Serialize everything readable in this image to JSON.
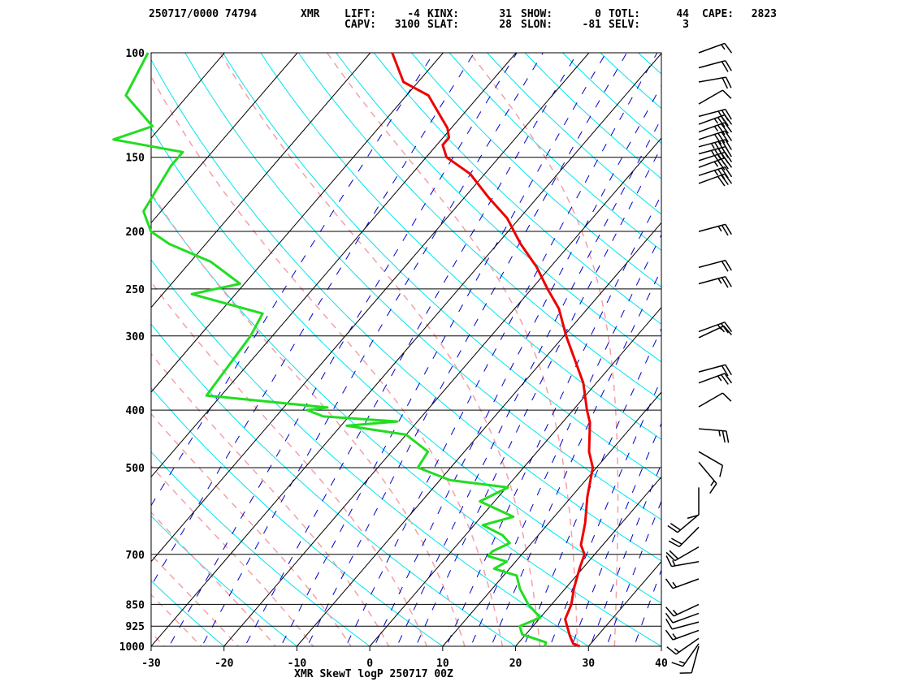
{
  "header": {
    "datetime_station": "250717/0000 74794",
    "station": "XMR",
    "indices": [
      {
        "label": "LIFT:",
        "value": "-4"
      },
      {
        "label": "KINX:",
        "value": "31"
      },
      {
        "label": "SHOW:",
        "value": "0"
      },
      {
        "label": "TOTL:",
        "value": "44"
      },
      {
        "label": "CAPE:",
        "value": "2823"
      },
      {
        "label": "CAPV:",
        "value": "3100"
      },
      {
        "label": "SLAT:",
        "value": "28"
      },
      {
        "label": "SLON:",
        "value": "-81"
      },
      {
        "label": "SELV:",
        "value": "3"
      }
    ]
  },
  "chart_data": {
    "type": "line",
    "title": "XMR SkewT logP 250717 00Z",
    "xlabel": "",
    "ylabel": "",
    "xlim": [
      -30,
      40
    ],
    "ylim": [
      1000,
      100
    ],
    "log_y": true,
    "x_ticks": [
      "-30",
      "-20",
      "-10",
      "0",
      "10",
      "20",
      "30",
      "40"
    ],
    "y_ticks": [
      "100",
      "150",
      "200",
      "250",
      "300",
      "400",
      "500",
      "700",
      "850",
      "925",
      "1000"
    ],
    "colors": {
      "temperature": "#ee0000",
      "dewpoint": "#22dd22",
      "dry_adiabat": "#00e5ee",
      "moist_adiabat": "#f4a0a8",
      "mixing_ratio": "#0000cc",
      "isotherm": "#000000"
    },
    "series": [
      {
        "role": "temperature",
        "points": [
          [
            1000,
            28.8
          ],
          [
            990,
            27.6
          ],
          [
            960,
            26.2
          ],
          [
            925,
            24.7
          ],
          [
            900,
            23.6
          ],
          [
            850,
            22.7
          ],
          [
            800,
            21.2
          ],
          [
            740,
            19.6
          ],
          [
            700,
            18.6
          ],
          [
            675,
            17.0
          ],
          [
            620,
            15.0
          ],
          [
            560,
            12.2
          ],
          [
            500,
            9.5
          ],
          [
            470,
            7.1
          ],
          [
            420,
            3.8
          ],
          [
            400,
            1.9
          ],
          [
            360,
            -1.8
          ],
          [
            320,
            -6.9
          ],
          [
            300,
            -9.7
          ],
          [
            270,
            -13.9
          ],
          [
            250,
            -17.8
          ],
          [
            230,
            -21.8
          ],
          [
            210,
            -26.8
          ],
          [
            190,
            -31.7
          ],
          [
            175,
            -36.8
          ],
          [
            160,
            -42.0
          ],
          [
            150,
            -47.2
          ],
          [
            143,
            -49.2
          ],
          [
            139,
            -49.2
          ],
          [
            134,
            -50.5
          ],
          [
            118,
            -57.0
          ],
          [
            112,
            -62.0
          ],
          [
            100,
            -67.0
          ]
        ]
      },
      {
        "role": "dewpoint",
        "points": [
          [
            1000,
            24.0
          ],
          [
            985,
            23.7
          ],
          [
            955,
            19.5
          ],
          [
            925,
            18.2
          ],
          [
            895,
            20.0
          ],
          [
            850,
            16.8
          ],
          [
            800,
            13.8
          ],
          [
            760,
            11.8
          ],
          [
            740,
            7.9
          ],
          [
            720,
            8.8
          ],
          [
            705,
            5.6
          ],
          [
            692,
            5.6
          ],
          [
            670,
            7.0
          ],
          [
            650,
            5.1
          ],
          [
            625,
            1.2
          ],
          [
            605,
            4.4
          ],
          [
            570,
            -2.0
          ],
          [
            540,
            0.2
          ],
          [
            525,
            -8.6
          ],
          [
            500,
            -14.5
          ],
          [
            470,
            -15.0
          ],
          [
            440,
            -20.0
          ],
          [
            425,
            -29.2
          ],
          [
            418,
            -22.8
          ],
          [
            410,
            -33.5
          ],
          [
            400,
            -36.5
          ],
          [
            396,
            -34.0
          ],
          [
            378,
            -52.0
          ],
          [
            300,
            -53.0
          ],
          [
            275,
            -54.0
          ],
          [
            255,
            -66.0
          ],
          [
            245,
            -60.6
          ],
          [
            225,
            -67.2
          ],
          [
            210,
            -75.0
          ],
          [
            200,
            -79.0
          ],
          [
            185,
            -82.4
          ],
          [
            155,
            -84.0
          ],
          [
            147,
            -84.0
          ],
          [
            140,
            -95.0
          ],
          [
            133,
            -91.2
          ],
          [
            118,
            -98.5
          ],
          [
            100,
            -100.5
          ]
        ]
      }
    ],
    "wind_barbs": [
      {
        "p": 100,
        "speed_kt": 15,
        "dir_deg": 70
      },
      {
        "p": 106,
        "speed_kt": 20,
        "dir_deg": 75
      },
      {
        "p": 112,
        "speed_kt": 20,
        "dir_deg": 80
      },
      {
        "p": 122,
        "speed_kt": 10,
        "dir_deg": 60
      },
      {
        "p": 128,
        "speed_kt": 30,
        "dir_deg": 75
      },
      {
        "p": 132,
        "speed_kt": 35,
        "dir_deg": 70
      },
      {
        "p": 136,
        "speed_kt": 35,
        "dir_deg": 70
      },
      {
        "p": 140,
        "speed_kt": 40,
        "dir_deg": 72
      },
      {
        "p": 144,
        "speed_kt": 45,
        "dir_deg": 75
      },
      {
        "p": 148,
        "speed_kt": 45,
        "dir_deg": 75
      },
      {
        "p": 152,
        "speed_kt": 40,
        "dir_deg": 72
      },
      {
        "p": 156,
        "speed_kt": 35,
        "dir_deg": 70
      },
      {
        "p": 161,
        "speed_kt": 35,
        "dir_deg": 72
      },
      {
        "p": 166,
        "speed_kt": 30,
        "dir_deg": 70
      },
      {
        "p": 200,
        "speed_kt": 25,
        "dir_deg": 75
      },
      {
        "p": 230,
        "speed_kt": 20,
        "dir_deg": 75
      },
      {
        "p": 245,
        "speed_kt": 25,
        "dir_deg": 75
      },
      {
        "p": 295,
        "speed_kt": 25,
        "dir_deg": 70
      },
      {
        "p": 302,
        "speed_kt": 15,
        "dir_deg": 65
      },
      {
        "p": 345,
        "speed_kt": 20,
        "dir_deg": 75
      },
      {
        "p": 360,
        "speed_kt": 25,
        "dir_deg": 70
      },
      {
        "p": 395,
        "speed_kt": 10,
        "dir_deg": 60
      },
      {
        "p": 430,
        "speed_kt": 25,
        "dir_deg": 95
      },
      {
        "p": 470,
        "speed_kt": 10,
        "dir_deg": 120
      },
      {
        "p": 490,
        "speed_kt": 15,
        "dir_deg": 140
      },
      {
        "p": 540,
        "speed_kt": 10,
        "dir_deg": 180
      },
      {
        "p": 600,
        "speed_kt": 20,
        "dir_deg": 230
      },
      {
        "p": 630,
        "speed_kt": 20,
        "dir_deg": 225
      },
      {
        "p": 680,
        "speed_kt": 20,
        "dir_deg": 240
      },
      {
        "p": 720,
        "speed_kt": 15,
        "dir_deg": 260
      },
      {
        "p": 770,
        "speed_kt": 15,
        "dir_deg": 250
      },
      {
        "p": 850,
        "speed_kt": 15,
        "dir_deg": 245
      },
      {
        "p": 880,
        "speed_kt": 10,
        "dir_deg": 250
      },
      {
        "p": 910,
        "speed_kt": 10,
        "dir_deg": 255
      },
      {
        "p": 940,
        "speed_kt": 15,
        "dir_deg": 250
      },
      {
        "p": 970,
        "speed_kt": 15,
        "dir_deg": 235
      },
      {
        "p": 990,
        "speed_kt": 15,
        "dir_deg": 215
      },
      {
        "p": 1000,
        "speed_kt": 10,
        "dir_deg": 195
      }
    ]
  }
}
